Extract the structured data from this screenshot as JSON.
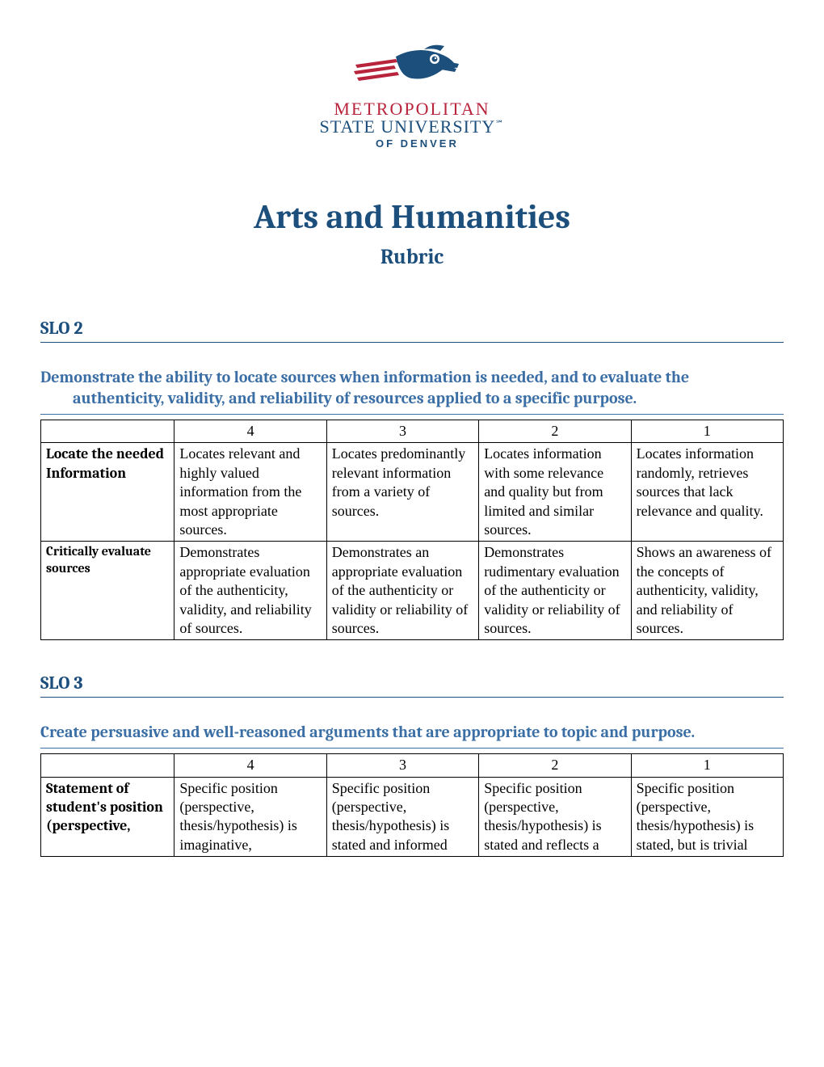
{
  "logo": {
    "line1": "METROPOLITAN",
    "line2": "STATE UNIVERSITY℠",
    "line3": "OF DENVER"
  },
  "title": "Arts and Humanities",
  "subtitle": "Rubric",
  "sections": [
    {
      "slo_label": "SLO 2",
      "slo_desc": "Demonstrate the ability to locate sources when information is needed, and to evaluate the authenticity, validity, and reliability of resources applied to a specific purpose.",
      "columns": [
        "4",
        "3",
        "2",
        "1"
      ],
      "rows": [
        {
          "head": "Locate the needed Information",
          "small": false,
          "cells": [
            "Locates relevant and highly valued information from the most appropriate sources.",
            "Locates predominantly relevant information from a variety of sources.",
            "Locates information with some relevance and quality but from limited and similar sources.",
            "Locates information randomly, retrieves sources that lack relevance and quality."
          ]
        },
        {
          "head": "Critically evaluate sources",
          "small": true,
          "cells": [
            "Demonstrates appropriate evaluation of the authenticity, validity, and reliability of sources.",
            "Demonstrates an appropriate evaluation of the authenticity or validity or reliability of sources.",
            "Demonstrates rudimentary evaluation of the authenticity or validity or reliability of sources.",
            "Shows an awareness of the concepts of authenticity, validity, and reliability of sources."
          ]
        }
      ]
    },
    {
      "slo_label": "SLO 3",
      "slo_desc": "Create persuasive and well-reasoned arguments that are appropriate to topic and purpose.",
      "columns": [
        "4",
        "3",
        "2",
        "1"
      ],
      "rows": [
        {
          "head": "Statement of student's position (perspective,",
          "small": false,
          "cells": [
            "Specific position (perspective, thesis/hypothesis) is imaginative,",
            "Specific position (perspective, thesis/hypothesis) is stated and informed",
            "Specific position (perspective, thesis/hypothesis) is stated and reflects a",
            "Specific position (perspective, thesis/hypothesis) is stated, but is trivial"
          ]
        }
      ]
    }
  ]
}
